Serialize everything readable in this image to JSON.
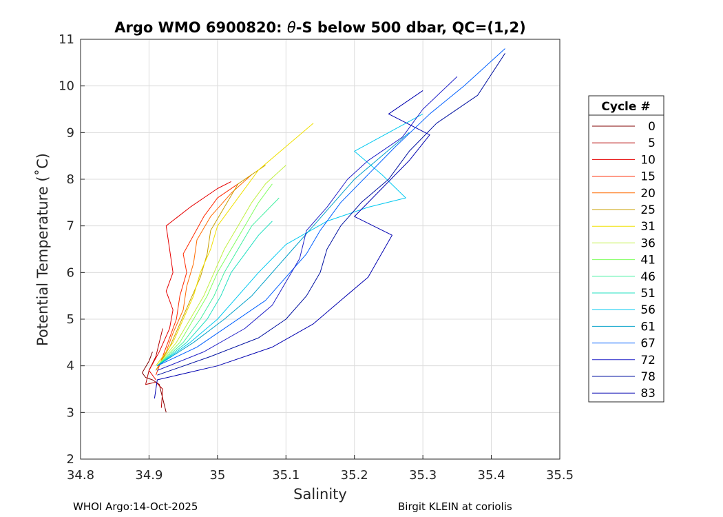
{
  "chart_data": {
    "type": "line",
    "title": "Argo WMO 6900820: θ-S below 500 dbar,  QC=(1,2)",
    "title_prefix": "Argo WMO 6900820: ",
    "title_theta": "θ",
    "title_suffix": "-S below 500 dbar,  QC=(1,2)",
    "xlabel": "Salinity",
    "ylabel": "Potential Temperature (˚C)",
    "xlim": [
      34.8,
      35.5
    ],
    "ylim": [
      2,
      11
    ],
    "xticks": [
      34.8,
      34.9,
      35.0,
      35.1,
      35.2,
      35.3,
      35.4,
      35.5
    ],
    "xtick_labels": [
      "34.8",
      "34.9",
      "35",
      "35.1",
      "35.2",
      "35.3",
      "35.4",
      "35.5"
    ],
    "yticks": [
      2,
      3,
      4,
      5,
      6,
      7,
      8,
      9,
      10,
      11
    ],
    "ytick_labels": [
      "2",
      "3",
      "4",
      "5",
      "6",
      "7",
      "8",
      "9",
      "10",
      "11"
    ],
    "grid": true,
    "legend_title": "Cycle #",
    "legend_position": "outside-right",
    "legend": [
      {
        "label": "0",
        "color": "#800000"
      },
      {
        "label": "5",
        "color": "#b30000"
      },
      {
        "label": "10",
        "color": "#e60000"
      },
      {
        "label": "15",
        "color": "#ff2a00"
      },
      {
        "label": "20",
        "color": "#ff6a00"
      },
      {
        "label": "25",
        "color": "#c8a000"
      },
      {
        "label": "31",
        "color": "#f0e000"
      },
      {
        "label": "36",
        "color": "#c0f040"
      },
      {
        "label": "41",
        "color": "#80ff60"
      },
      {
        "label": "46",
        "color": "#40f0a0"
      },
      {
        "label": "51",
        "color": "#20e0c0"
      },
      {
        "label": "56",
        "color": "#00c8f0"
      },
      {
        "label": "61",
        "color": "#00a0c8"
      },
      {
        "label": "67",
        "color": "#0060ff"
      },
      {
        "label": "72",
        "color": "#2020c8"
      },
      {
        "label": "78",
        "color": "#0010a0"
      },
      {
        "label": "83",
        "color": "#0000b0"
      }
    ],
    "series": [
      {
        "name": "0",
        "color": "#800000",
        "points": [
          [
            34.925,
            3.0
          ],
          [
            34.92,
            3.3
          ],
          [
            34.915,
            3.6
          ],
          [
            34.905,
            3.7
          ],
          [
            34.895,
            3.75
          ],
          [
            34.89,
            3.85
          ],
          [
            34.9,
            4.1
          ],
          [
            34.905,
            4.3
          ]
        ]
      },
      {
        "name": "5",
        "color": "#b30000",
        "points": [
          [
            34.918,
            3.1
          ],
          [
            34.92,
            3.5
          ],
          [
            34.91,
            3.65
          ],
          [
            34.895,
            3.6
          ],
          [
            34.9,
            3.9
          ],
          [
            34.91,
            4.2
          ],
          [
            34.915,
            4.5
          ],
          [
            34.92,
            4.8
          ]
        ]
      },
      {
        "name": "10",
        "color": "#e60000",
        "points": [
          [
            34.91,
            3.7
          ],
          [
            34.9,
            3.9
          ],
          [
            34.915,
            4.3
          ],
          [
            34.93,
            4.8
          ],
          [
            34.935,
            5.2
          ],
          [
            34.925,
            5.6
          ],
          [
            34.935,
            6.0
          ],
          [
            34.93,
            6.5
          ],
          [
            34.925,
            7.0
          ],
          [
            34.96,
            7.4
          ],
          [
            35.0,
            7.8
          ],
          [
            35.02,
            7.95
          ]
        ]
      },
      {
        "name": "15",
        "color": "#ff2a00",
        "points": [
          [
            34.91,
            3.8
          ],
          [
            34.92,
            4.2
          ],
          [
            34.93,
            4.6
          ],
          [
            34.94,
            5.0
          ],
          [
            34.945,
            5.5
          ],
          [
            34.955,
            6.0
          ],
          [
            34.95,
            6.4
          ],
          [
            34.965,
            6.8
          ],
          [
            34.98,
            7.2
          ],
          [
            35.0,
            7.6
          ],
          [
            35.03,
            7.9
          ]
        ]
      },
      {
        "name": "20",
        "color": "#ff6a00",
        "points": [
          [
            34.91,
            3.9
          ],
          [
            34.925,
            4.3
          ],
          [
            34.935,
            4.7
          ],
          [
            34.95,
            5.2
          ],
          [
            34.955,
            5.7
          ],
          [
            34.965,
            6.2
          ],
          [
            34.97,
            6.7
          ],
          [
            34.99,
            7.2
          ],
          [
            35.02,
            7.7
          ],
          [
            35.05,
            8.1
          ]
        ]
      },
      {
        "name": "25",
        "color": "#c8a000",
        "points": [
          [
            34.91,
            3.9
          ],
          [
            34.93,
            4.4
          ],
          [
            34.945,
            4.9
          ],
          [
            34.96,
            5.4
          ],
          [
            34.975,
            5.9
          ],
          [
            34.985,
            6.4
          ],
          [
            34.99,
            6.9
          ],
          [
            35.01,
            7.4
          ],
          [
            35.03,
            7.9
          ],
          [
            35.07,
            8.3
          ]
        ]
      },
      {
        "name": "31",
        "color": "#f0e000",
        "points": [
          [
            34.91,
            4.0
          ],
          [
            34.935,
            4.5
          ],
          [
            34.95,
            5.0
          ],
          [
            34.965,
            5.5
          ],
          [
            34.975,
            6.0
          ],
          [
            34.99,
            6.5
          ],
          [
            35.0,
            7.0
          ],
          [
            35.03,
            7.6
          ],
          [
            35.06,
            8.2
          ],
          [
            35.1,
            8.7
          ],
          [
            35.14,
            9.2
          ]
        ]
      },
      {
        "name": "36",
        "color": "#c0f040",
        "points": [
          [
            34.912,
            4.0
          ],
          [
            34.94,
            4.5
          ],
          [
            34.96,
            5.0
          ],
          [
            34.98,
            5.5
          ],
          [
            34.995,
            6.0
          ],
          [
            35.01,
            6.5
          ],
          [
            35.03,
            7.0
          ],
          [
            35.05,
            7.5
          ],
          [
            35.07,
            7.9
          ],
          [
            35.1,
            8.3
          ]
        ]
      },
      {
        "name": "41",
        "color": "#80ff60",
        "points": [
          [
            34.912,
            4.0
          ],
          [
            34.945,
            4.5
          ],
          [
            34.965,
            5.0
          ],
          [
            34.985,
            5.5
          ],
          [
            35.0,
            6.0
          ],
          [
            35.02,
            6.5
          ],
          [
            35.04,
            7.0
          ],
          [
            35.06,
            7.5
          ],
          [
            35.08,
            7.9
          ]
        ]
      },
      {
        "name": "46",
        "color": "#40f0a0",
        "points": [
          [
            34.912,
            4.0
          ],
          [
            34.95,
            4.5
          ],
          [
            34.975,
            5.0
          ],
          [
            34.995,
            5.5
          ],
          [
            35.01,
            6.0
          ],
          [
            35.03,
            6.5
          ],
          [
            35.05,
            7.0
          ],
          [
            35.07,
            7.3
          ],
          [
            35.09,
            7.6
          ]
        ]
      },
      {
        "name": "51",
        "color": "#20e0c0",
        "points": [
          [
            34.912,
            4.0
          ],
          [
            34.955,
            4.5
          ],
          [
            34.985,
            5.0
          ],
          [
            35.005,
            5.5
          ],
          [
            35.02,
            6.0
          ],
          [
            35.04,
            6.4
          ],
          [
            35.06,
            6.8
          ],
          [
            35.08,
            7.1
          ]
        ]
      },
      {
        "name": "56",
        "color": "#00c8f0",
        "points": [
          [
            34.912,
            4.0
          ],
          [
            34.96,
            4.5
          ],
          [
            35.0,
            5.0
          ],
          [
            35.03,
            5.5
          ],
          [
            35.06,
            6.0
          ],
          [
            35.1,
            6.6
          ],
          [
            35.16,
            7.1
          ],
          [
            35.22,
            7.4
          ],
          [
            35.275,
            7.6
          ],
          [
            35.24,
            8.1
          ],
          [
            35.2,
            8.6
          ],
          [
            35.3,
            9.4
          ]
        ]
      },
      {
        "name": "61",
        "color": "#00a0c8",
        "points": [
          [
            34.912,
            4.0
          ],
          [
            34.965,
            4.5
          ],
          [
            35.01,
            5.0
          ],
          [
            35.05,
            5.5
          ],
          [
            35.08,
            6.0
          ],
          [
            35.11,
            6.5
          ],
          [
            35.14,
            7.0
          ],
          [
            35.17,
            7.5
          ],
          [
            35.2,
            8.0
          ],
          [
            35.24,
            8.5
          ],
          [
            35.28,
            9.0
          ]
        ]
      },
      {
        "name": "67",
        "color": "#0060ff",
        "points": [
          [
            34.912,
            4.0
          ],
          [
            34.97,
            4.4
          ],
          [
            35.02,
            4.9
          ],
          [
            35.07,
            5.4
          ],
          [
            35.1,
            5.9
          ],
          [
            35.13,
            6.4
          ],
          [
            35.15,
            6.9
          ],
          [
            35.18,
            7.5
          ],
          [
            35.22,
            8.1
          ],
          [
            35.26,
            8.7
          ],
          [
            35.31,
            9.4
          ],
          [
            35.36,
            10.0
          ],
          [
            35.42,
            10.8
          ]
        ]
      },
      {
        "name": "72",
        "color": "#2020c8",
        "points": [
          [
            34.912,
            3.9
          ],
          [
            34.98,
            4.3
          ],
          [
            35.04,
            4.8
          ],
          [
            35.08,
            5.3
          ],
          [
            35.1,
            5.8
          ],
          [
            35.12,
            6.3
          ],
          [
            35.13,
            6.9
          ],
          [
            35.16,
            7.4
          ],
          [
            35.19,
            8.0
          ],
          [
            35.22,
            8.4
          ],
          [
            35.27,
            8.9
          ],
          [
            35.3,
            9.5
          ],
          [
            35.35,
            10.2
          ]
        ]
      },
      {
        "name": "78",
        "color": "#0010a0",
        "points": [
          [
            34.912,
            3.8
          ],
          [
            34.99,
            4.2
          ],
          [
            35.06,
            4.6
          ],
          [
            35.1,
            5.0
          ],
          [
            35.13,
            5.5
          ],
          [
            35.15,
            6.0
          ],
          [
            35.16,
            6.5
          ],
          [
            35.18,
            7.0
          ],
          [
            35.21,
            7.5
          ],
          [
            35.25,
            8.0
          ],
          [
            35.28,
            8.6
          ],
          [
            35.32,
            9.2
          ],
          [
            35.38,
            9.8
          ],
          [
            35.42,
            10.7
          ]
        ]
      },
      {
        "name": "83",
        "color": "#0000b0",
        "points": [
          [
            34.908,
            3.3
          ],
          [
            34.912,
            3.7
          ],
          [
            35.0,
            4.0
          ],
          [
            35.08,
            4.4
          ],
          [
            35.14,
            4.9
          ],
          [
            35.18,
            5.4
          ],
          [
            35.22,
            5.9
          ],
          [
            35.255,
            6.8
          ],
          [
            35.2,
            7.2
          ],
          [
            35.24,
            7.8
          ],
          [
            35.28,
            8.4
          ],
          [
            35.31,
            8.95
          ],
          [
            35.25,
            9.4
          ],
          [
            35.3,
            9.9
          ]
        ]
      }
    ],
    "credit_left": "WHOI Argo:14-Oct-2025",
    "credit_right": "Birgit KLEIN at coriolis"
  }
}
